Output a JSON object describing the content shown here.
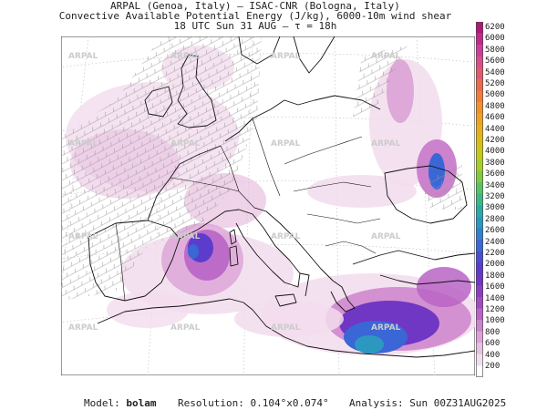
{
  "header": {
    "line1": "ARPAL (Genoa, Italy)  –  ISAC-CNR (Bologna, Italy)",
    "line2": "Convective Available Potential Energy (J/kg), 6000-10m wind shear",
    "line3": "18 UTC Sun 31 AUG  –  τ = 18h"
  },
  "watermark": "ARPAL",
  "colorbar": {
    "labels": [
      "6200",
      "6000",
      "5800",
      "5600",
      "5400",
      "5200",
      "5000",
      "4800",
      "4600",
      "4400",
      "4200",
      "4000",
      "3800",
      "3600",
      "3400",
      "3200",
      "3000",
      "2800",
      "2600",
      "2400",
      "2200",
      "2000",
      "1800",
      "1600",
      "1400",
      "1200",
      "1000",
      "800",
      "600",
      "400",
      "200"
    ],
    "colors": [
      "#b01878",
      "#c02a8c",
      "#ce3c9a",
      "#d84e88",
      "#e25a6c",
      "#ea6a50",
      "#f07c3c",
      "#f09030",
      "#eca228",
      "#e4b020",
      "#d6be18",
      "#c4c81c",
      "#a8cc2a",
      "#82c840",
      "#5cc064",
      "#3cb888",
      "#2eaaa6",
      "#2c98c0",
      "#3080d0",
      "#3a66d6",
      "#4a4ed4",
      "#5c3ccc",
      "#7036c4",
      "#8a3ec0",
      "#a24cc2",
      "#b864c6",
      "#cc82cc",
      "#dca2d6",
      "#e8c0e0",
      "#f2dced",
      "#ffffff"
    ]
  },
  "footer": {
    "model_label": "Model:",
    "model_value": "bolam",
    "resolution": "Resolution: 0.104°x0.074°",
    "analysis": "Analysis: Sun 00Z31AUG2025"
  }
}
